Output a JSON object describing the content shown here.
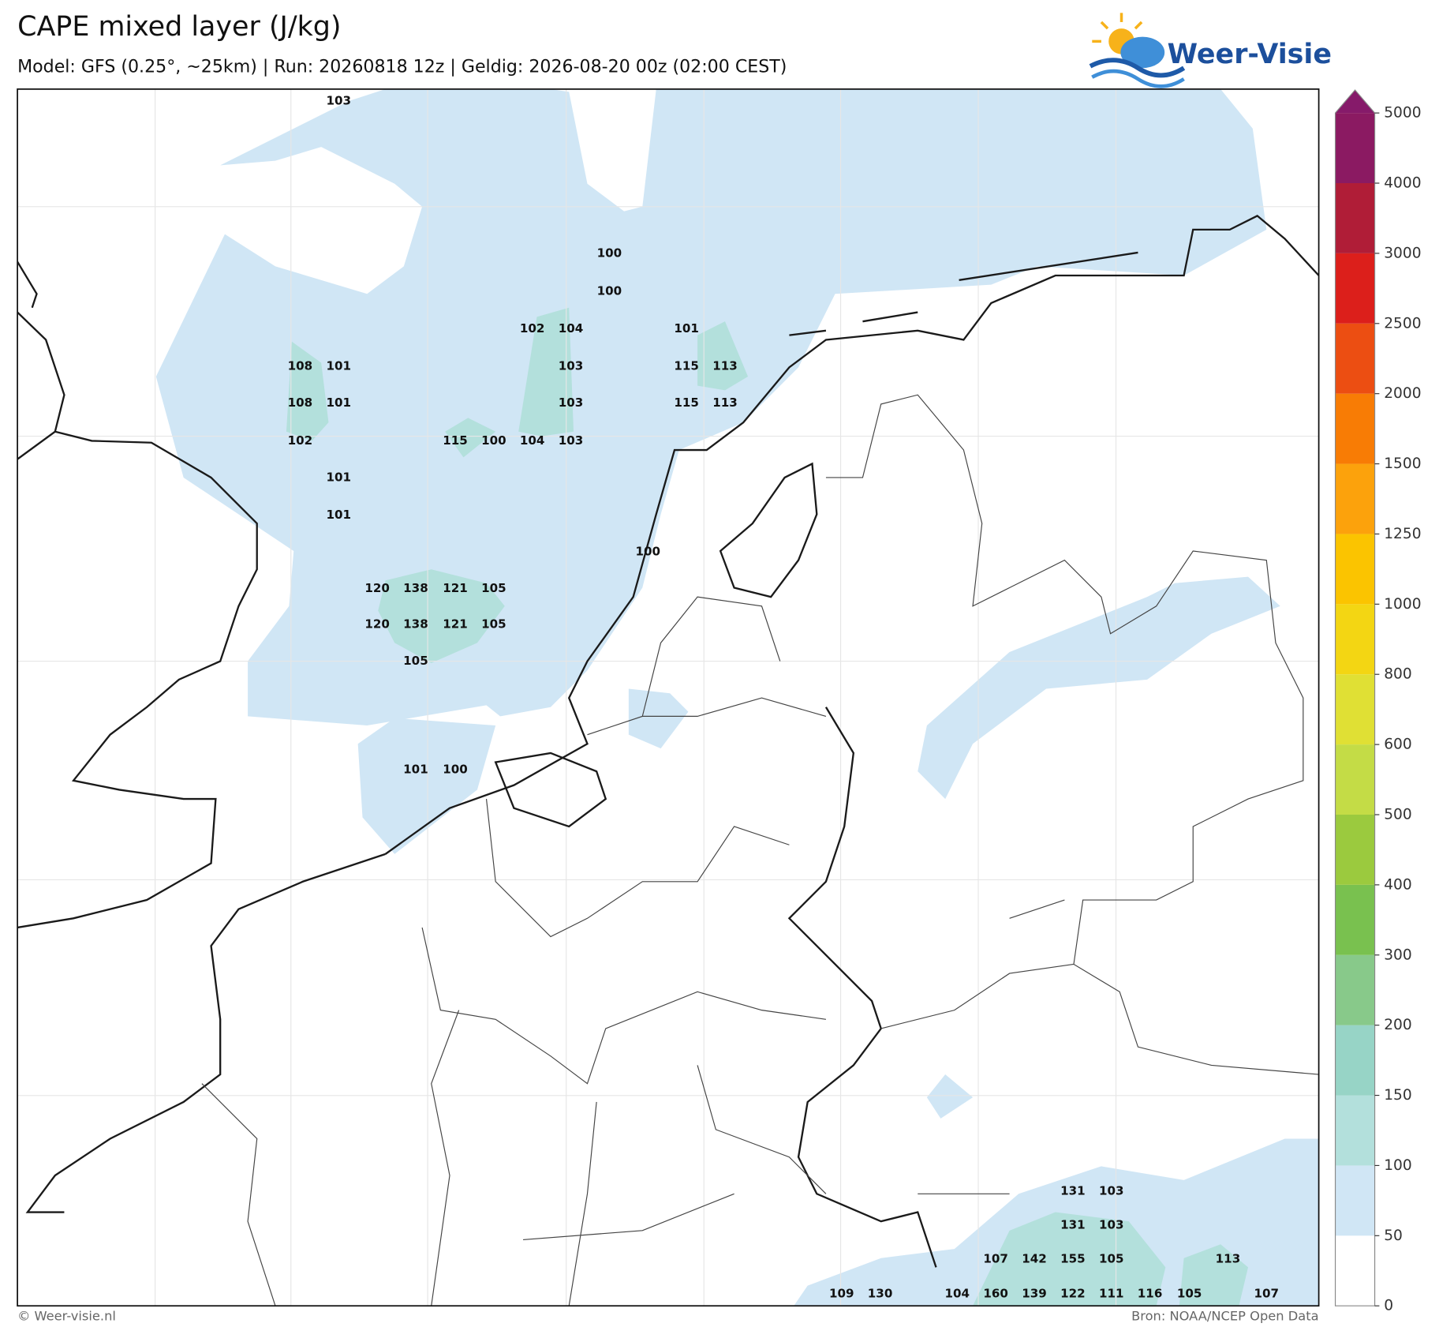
{
  "header": {
    "title": "CAPE mixed layer (J/kg)",
    "subtitle": "Model: GFS (0.25°, ~25km)  |  Run: 20260818 12z  |  Geldig: 2026-08-20 00z (02:00 CEST)",
    "logo": "Weer-Visie"
  },
  "point_labels": [
    103,
    100,
    100,
    102,
    104,
    101,
    108,
    101,
    103,
    115,
    113,
    108,
    101,
    103,
    115,
    113,
    102,
    115,
    100,
    104,
    103,
    101,
    101,
    100,
    120,
    138,
    121,
    105,
    120,
    138,
    121,
    105,
    105,
    101,
    100,
    131,
    103,
    131,
    103,
    107,
    142,
    155,
    105,
    113,
    109,
    130,
    104,
    160,
    139,
    122,
    111,
    116,
    105,
    107
  ],
  "colorbar": {
    "levels": [
      0,
      50,
      100,
      150,
      200,
      300,
      400,
      500,
      600,
      800,
      1000,
      1250,
      1500,
      2000,
      2500,
      3000,
      4000,
      5000
    ],
    "colors": [
      "#ffffff",
      "#d0e6f5",
      "#b3e0dc",
      "#97d4c6",
      "#88c98a",
      "#79c14f",
      "#9bca3e",
      "#c4dc46",
      "#e0e034",
      "#f3d613",
      "#fbc400",
      "#fca20c",
      "#f87c05",
      "#ec4e12",
      "#dc1f1b",
      "#b01d37",
      "#8b1a62"
    ],
    "extend_color": "#861a6a"
  },
  "footer": {
    "left": "© Weer-visie.nl",
    "right": "Bron: NOAA/NCEP Open Data"
  }
}
